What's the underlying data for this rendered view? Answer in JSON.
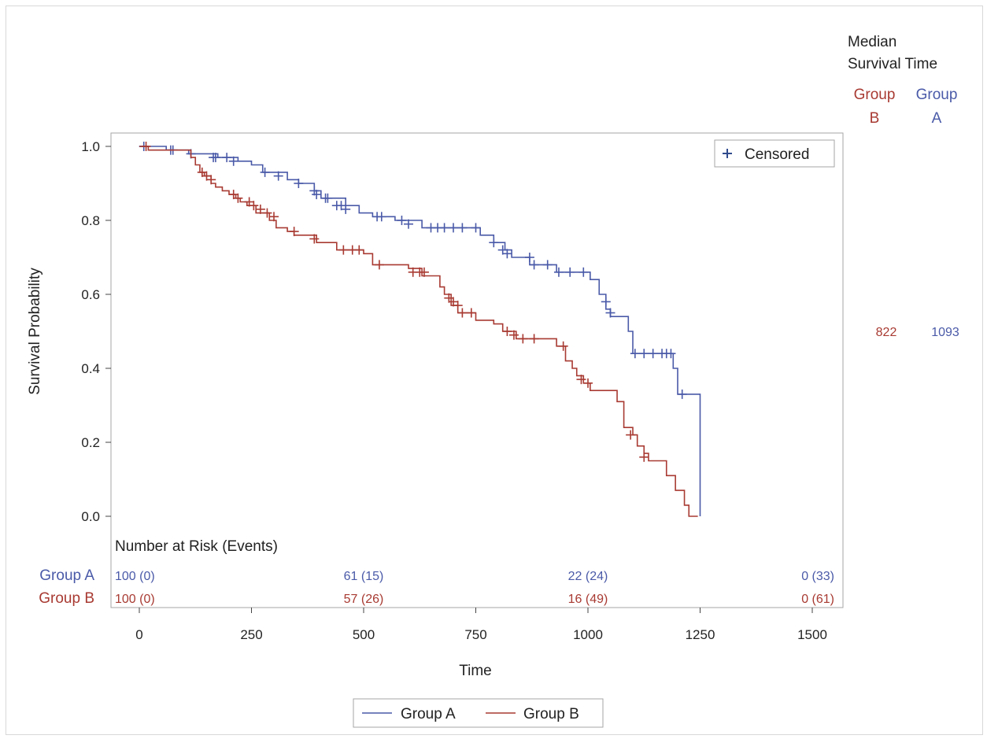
{
  "colors": {
    "group_a": "#4a5aa8",
    "group_b": "#a83a32",
    "axis": "#444444",
    "frame": "#a6a6a6",
    "text": "#222222"
  },
  "chart_data": {
    "type": "line",
    "subtype": "kaplan-meier",
    "xlabel": "Time",
    "ylabel": "Survival Probability",
    "xlim": [
      -60,
      1560
    ],
    "ylim": [
      0,
      1
    ],
    "x_ticks": [
      0,
      250,
      500,
      750,
      1000,
      1250,
      1500
    ],
    "y_ticks": [
      0.0,
      0.2,
      0.4,
      0.6,
      0.8,
      1.0
    ],
    "x_tick_labels": [
      "0",
      "250",
      "500",
      "750",
      "1000",
      "1250",
      "1500"
    ],
    "y_tick_labels": [
      "0.0",
      "0.2",
      "0.4",
      "0.6",
      "0.8",
      "1.0"
    ],
    "grid": false,
    "censor_legend": "Censored",
    "median_header": [
      "Median",
      "Survival Time"
    ],
    "risk_table_title": "Number at Risk (Events)",
    "risk_times": [
      0,
      500,
      1000,
      1500
    ],
    "legend": {
      "placement": "bottom-center",
      "entries": [
        "Group A",
        "Group B"
      ]
    },
    "series": [
      {
        "name": "Group A",
        "color": "#4a5aa8",
        "median": "1093",
        "median_header": [
          "Group",
          "A"
        ],
        "risk_label": "Group A",
        "risk": [
          "100 (0)",
          "61 (15)",
          "22 (24)",
          "0 (33)"
        ],
        "steps": [
          [
            0,
            1.0
          ],
          [
            60,
            0.99
          ],
          [
            110,
            0.98
          ],
          [
            175,
            0.97
          ],
          [
            220,
            0.96
          ],
          [
            250,
            0.95
          ],
          [
            275,
            0.93
          ],
          [
            330,
            0.91
          ],
          [
            355,
            0.9
          ],
          [
            390,
            0.88
          ],
          [
            405,
            0.86
          ],
          [
            460,
            0.84
          ],
          [
            490,
            0.82
          ],
          [
            520,
            0.81
          ],
          [
            570,
            0.8
          ],
          [
            630,
            0.78
          ],
          [
            760,
            0.76
          ],
          [
            790,
            0.74
          ],
          [
            815,
            0.72
          ],
          [
            830,
            0.7
          ],
          [
            870,
            0.68
          ],
          [
            930,
            0.66
          ],
          [
            1005,
            0.64
          ],
          [
            1025,
            0.6
          ],
          [
            1040,
            0.56
          ],
          [
            1050,
            0.54
          ],
          [
            1090,
            0.5
          ],
          [
            1100,
            0.44
          ],
          [
            1190,
            0.4
          ],
          [
            1200,
            0.33
          ],
          [
            1250,
            0.0
          ]
        ],
        "end_x": 1250,
        "censored": [
          [
            10,
            1.0
          ],
          [
            70,
            0.99
          ],
          [
            75,
            0.99
          ],
          [
            115,
            0.98
          ],
          [
            165,
            0.97
          ],
          [
            170,
            0.97
          ],
          [
            195,
            0.97
          ],
          [
            210,
            0.96
          ],
          [
            280,
            0.93
          ],
          [
            310,
            0.92
          ],
          [
            355,
            0.9
          ],
          [
            390,
            0.88
          ],
          [
            395,
            0.87
          ],
          [
            415,
            0.86
          ],
          [
            420,
            0.86
          ],
          [
            440,
            0.84
          ],
          [
            450,
            0.84
          ],
          [
            460,
            0.83
          ],
          [
            530,
            0.81
          ],
          [
            540,
            0.81
          ],
          [
            585,
            0.8
          ],
          [
            600,
            0.79
          ],
          [
            650,
            0.78
          ],
          [
            665,
            0.78
          ],
          [
            680,
            0.78
          ],
          [
            700,
            0.78
          ],
          [
            720,
            0.78
          ],
          [
            750,
            0.78
          ],
          [
            790,
            0.74
          ],
          [
            810,
            0.72
          ],
          [
            820,
            0.71
          ],
          [
            870,
            0.7
          ],
          [
            880,
            0.68
          ],
          [
            910,
            0.68
          ],
          [
            935,
            0.66
          ],
          [
            960,
            0.66
          ],
          [
            990,
            0.66
          ],
          [
            1040,
            0.58
          ],
          [
            1050,
            0.55
          ],
          [
            1105,
            0.44
          ],
          [
            1125,
            0.44
          ],
          [
            1145,
            0.44
          ],
          [
            1165,
            0.44
          ],
          [
            1175,
            0.44
          ],
          [
            1185,
            0.44
          ],
          [
            1210,
            0.33
          ]
        ]
      },
      {
        "name": "Group B",
        "color": "#a83a32",
        "median": "822",
        "median_header": [
          "Group",
          "B"
        ],
        "risk_label": "Group B",
        "risk": [
          "100 (0)",
          "57 (26)",
          "16 (49)",
          "0 (61)"
        ],
        "steps": [
          [
            0,
            1.0
          ],
          [
            20,
            0.99
          ],
          [
            115,
            0.97
          ],
          [
            125,
            0.95
          ],
          [
            135,
            0.93
          ],
          [
            145,
            0.92
          ],
          [
            160,
            0.9
          ],
          [
            170,
            0.89
          ],
          [
            185,
            0.88
          ],
          [
            200,
            0.87
          ],
          [
            215,
            0.86
          ],
          [
            225,
            0.85
          ],
          [
            240,
            0.84
          ],
          [
            260,
            0.82
          ],
          [
            290,
            0.8
          ],
          [
            305,
            0.78
          ],
          [
            330,
            0.77
          ],
          [
            345,
            0.76
          ],
          [
            395,
            0.74
          ],
          [
            440,
            0.72
          ],
          [
            500,
            0.71
          ],
          [
            520,
            0.68
          ],
          [
            600,
            0.67
          ],
          [
            630,
            0.65
          ],
          [
            670,
            0.62
          ],
          [
            680,
            0.6
          ],
          [
            695,
            0.57
          ],
          [
            710,
            0.55
          ],
          [
            750,
            0.53
          ],
          [
            790,
            0.52
          ],
          [
            810,
            0.5
          ],
          [
            840,
            0.48
          ],
          [
            930,
            0.46
          ],
          [
            950,
            0.42
          ],
          [
            965,
            0.4
          ],
          [
            975,
            0.38
          ],
          [
            990,
            0.36
          ],
          [
            1005,
            0.34
          ],
          [
            1065,
            0.31
          ],
          [
            1080,
            0.24
          ],
          [
            1100,
            0.22
          ],
          [
            1110,
            0.19
          ],
          [
            1125,
            0.17
          ],
          [
            1135,
            0.15
          ],
          [
            1175,
            0.11
          ],
          [
            1195,
            0.07
          ],
          [
            1215,
            0.03
          ],
          [
            1225,
            0.0
          ]
        ],
        "end_x": 1245,
        "censored": [
          [
            15,
            1.0
          ],
          [
            140,
            0.93
          ],
          [
            150,
            0.92
          ],
          [
            160,
            0.91
          ],
          [
            210,
            0.87
          ],
          [
            220,
            0.86
          ],
          [
            245,
            0.85
          ],
          [
            255,
            0.84
          ],
          [
            270,
            0.83
          ],
          [
            285,
            0.82
          ],
          [
            300,
            0.81
          ],
          [
            345,
            0.77
          ],
          [
            390,
            0.75
          ],
          [
            455,
            0.72
          ],
          [
            475,
            0.72
          ],
          [
            490,
            0.72
          ],
          [
            535,
            0.68
          ],
          [
            610,
            0.66
          ],
          [
            625,
            0.66
          ],
          [
            635,
            0.66
          ],
          [
            690,
            0.59
          ],
          [
            700,
            0.58
          ],
          [
            710,
            0.57
          ],
          [
            720,
            0.55
          ],
          [
            740,
            0.55
          ],
          [
            820,
            0.5
          ],
          [
            835,
            0.49
          ],
          [
            855,
            0.48
          ],
          [
            880,
            0.48
          ],
          [
            945,
            0.46
          ],
          [
            985,
            0.37
          ],
          [
            1000,
            0.36
          ],
          [
            1095,
            0.22
          ],
          [
            1125,
            0.16
          ]
        ]
      }
    ]
  }
}
